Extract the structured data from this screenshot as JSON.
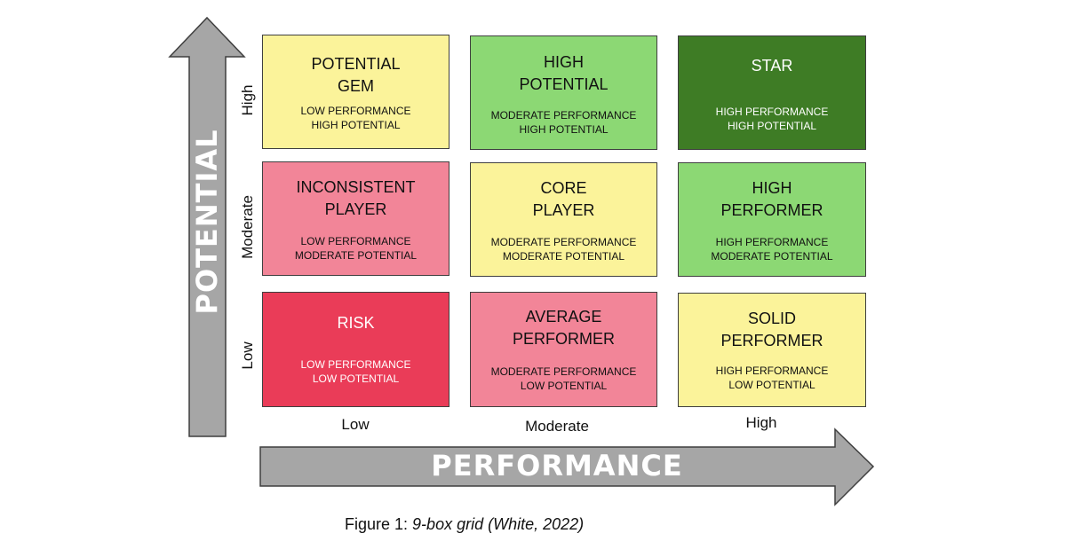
{
  "axes": {
    "y_title": "POTENTIAL",
    "x_title": "PERFORMANCE",
    "y_levels": [
      "High",
      "Moderate",
      "Low"
    ],
    "x_levels": [
      "Low",
      "Moderate",
      "High"
    ]
  },
  "colors": {
    "yellow": "#fbf39a",
    "light_green": "#8cd874",
    "dark_green": "#3e7c25",
    "pink": "#f28598",
    "red": "#ea3c58",
    "arrow_gray": "#a6a6a6",
    "border": "#3f3f3f"
  },
  "boxes": [
    {
      "title": "POTENTIAL\nGEM",
      "subtitle": "LOW PERFORMANCE\nHIGH POTENTIAL"
    },
    {
      "title": "HIGH\nPOTENTIAL",
      "subtitle": "MODERATE PERFORMANCE\nHIGH POTENTIAL"
    },
    {
      "title": "STAR",
      "subtitle": "HIGH PERFORMANCE\nHIGH POTENTIAL"
    },
    {
      "title": "INCONSISTENT\nPLAYER",
      "subtitle": "LOW PERFORMANCE\nMODERATE POTENTIAL"
    },
    {
      "title": "CORE\nPLAYER",
      "subtitle": "MODERATE PERFORMANCE\nMODERATE POTENTIAL"
    },
    {
      "title": "HIGH\nPERFORMER",
      "subtitle": "HIGH PERFORMANCE\nMODERATE POTENTIAL"
    },
    {
      "title": "RISK",
      "subtitle": "LOW PERFORMANCE\nLOW POTENTIAL"
    },
    {
      "title": "AVERAGE\nPERFORMER",
      "subtitle": "MODERATE PERFORMANCE\nLOW POTENTIAL"
    },
    {
      "title": "SOLID\nPERFORMER",
      "subtitle": "HIGH PERFORMANCE\nLOW POTENTIAL"
    }
  ],
  "caption": {
    "prefix": "Figure 1: ",
    "italic": "9-box grid (White, 2022)"
  }
}
